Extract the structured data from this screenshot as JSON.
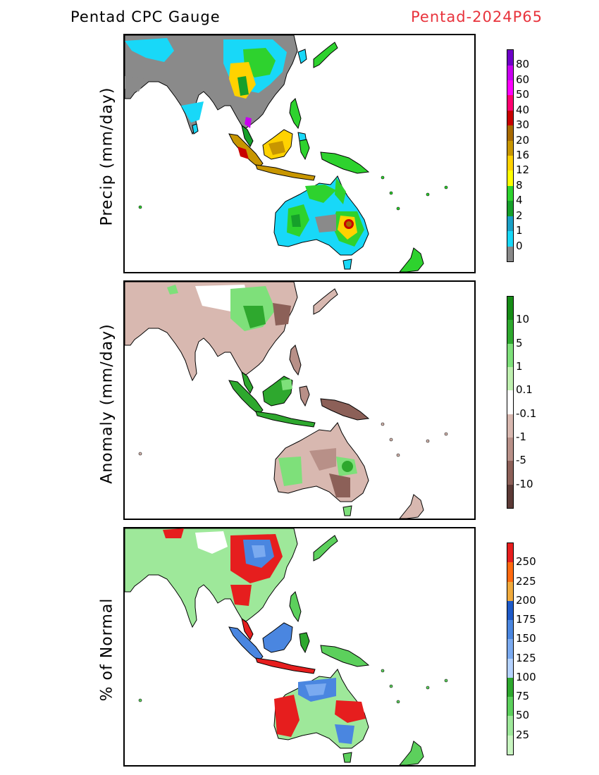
{
  "header": {
    "left_title": "Pentad CPC Gauge",
    "right_title": "Pentad-2024P65"
  },
  "panels": [
    {
      "ylabel": "Precip (mm/day)",
      "colorbar": {
        "colors": [
          "#888888",
          "#18d8f8",
          "#1aa0c6",
          "#16a02a",
          "#2ed22e",
          "#ffff00",
          "#ffd200",
          "#c89600",
          "#a86a00",
          "#c80000",
          "#ff0070",
          "#ff00ff",
          "#c800f0",
          "#6e00c8"
        ],
        "labels": [
          "0",
          "1",
          "2",
          "4",
          "8",
          "12",
          "16",
          "20",
          "30",
          "40",
          "50",
          "60",
          "80"
        ]
      }
    },
    {
      "ylabel": "Anomaly (mm/day)",
      "colorbar": {
        "colors": [
          "#5c3a36",
          "#8c6058",
          "#b89088",
          "#d8b8b0",
          "#ffffff",
          "#bff0b0",
          "#7ee07a",
          "#2ea82e",
          "#168c16"
        ],
        "labels": [
          "-10",
          "-5",
          "-1",
          "-0.1",
          "0.1",
          "1",
          "5",
          "10"
        ]
      }
    },
    {
      "ylabel": "% of Normal",
      "colorbar": {
        "colors": [
          "#c8f5c0",
          "#9ee89a",
          "#5cd05c",
          "#2ea82e",
          "#b4d2ff",
          "#7aaaf0",
          "#4a86e0",
          "#1e5ac8",
          "#f0aa3c",
          "#ff6a10",
          "#e61e1e"
        ],
        "labels": [
          "25",
          "50",
          "75",
          "100",
          "125",
          "150",
          "175",
          "200",
          "225",
          "250"
        ]
      }
    }
  ]
}
